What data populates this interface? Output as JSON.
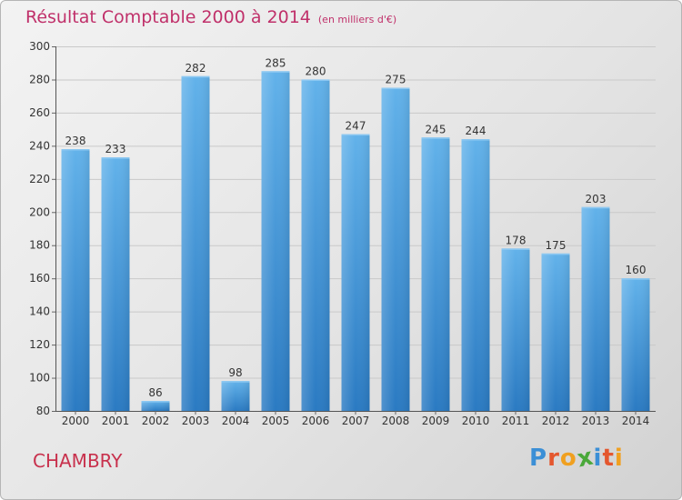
{
  "chart_data": {
    "type": "bar",
    "title": "Résultat Comptable 2000 à 2014",
    "subtitle": "(en milliers d'€)",
    "categories": [
      "2000",
      "2001",
      "2002",
      "2003",
      "2004",
      "2005",
      "2006",
      "2007",
      "2008",
      "2009",
      "2010",
      "2011",
      "2012",
      "2013",
      "2014"
    ],
    "values": [
      238,
      233,
      86,
      282,
      98,
      285,
      280,
      247,
      275,
      245,
      244,
      178,
      175,
      203,
      160
    ],
    "ylim": [
      80,
      300
    ],
    "yticks": [
      80,
      100,
      120,
      140,
      160,
      180,
      200,
      220,
      240,
      260,
      280,
      300
    ],
    "grid": true,
    "colors": {
      "bar_light": "#62b2ea",
      "bar_dark": "#2a7ac2"
    }
  },
  "location_name": "CHAMBRY",
  "logo": {
    "text": "Proxiti",
    "letters": [
      {
        "ch": "P",
        "color": "#3b8fd6"
      },
      {
        "ch": "r",
        "color": "#e4572e"
      },
      {
        "ch": "o",
        "color": "#f0a020"
      },
      {
        "ch": "x",
        "color": "#4aa83a"
      },
      {
        "ch": "i",
        "color": "#3b8fd6"
      },
      {
        "ch": "t",
        "color": "#e4572e"
      },
      {
        "ch": "i",
        "color": "#f0a020"
      }
    ]
  }
}
